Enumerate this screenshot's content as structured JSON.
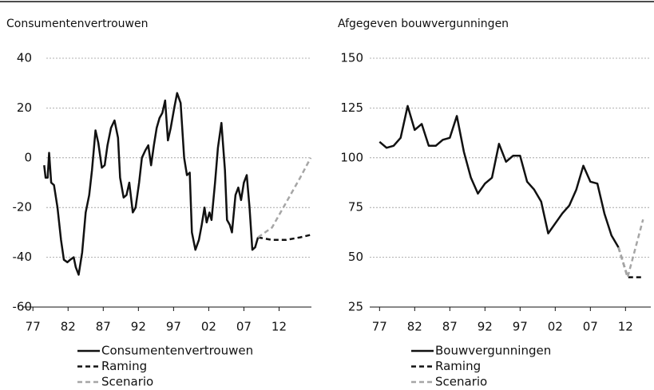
{
  "chart_data": [
    {
      "type": "line",
      "title": "Consumentenvertrouwen",
      "xlim": [
        1975.5,
        2016.6
      ],
      "xticks": [
        {
          "value": 1977,
          "label": "77"
        },
        {
          "value": 1982,
          "label": "82"
        },
        {
          "value": 1987,
          "label": "87"
        },
        {
          "value": 1992,
          "label": "92"
        },
        {
          "value": 1997,
          "label": "97"
        },
        {
          "value": 2002,
          "label": "02"
        },
        {
          "value": 2007,
          "label": "07"
        },
        {
          "value": 2012,
          "label": "12"
        }
      ],
      "ylim": [
        -60,
        40
      ],
      "yticks": [
        -60,
        -40,
        -20,
        0,
        20,
        40
      ],
      "grid": true,
      "series": [
        {
          "name": "Consumentenvertrouwen",
          "color": "#111111",
          "style": "solid",
          "x": [
            1978.6,
            1978.8,
            1979.1,
            1979.3,
            1979.6,
            1980.0,
            1980.5,
            1981.0,
            1981.4,
            1981.9,
            1982.3,
            1982.8,
            1983.1,
            1983.5,
            1984.0,
            1984.5,
            1985.0,
            1985.4,
            1985.9,
            1986.3,
            1986.8,
            1987.2,
            1987.6,
            1988.1,
            1988.6,
            1989.1,
            1989.4,
            1989.9,
            1990.3,
            1990.7,
            1991.2,
            1991.6,
            1992.1,
            1992.5,
            1993.0,
            1993.4,
            1993.8,
            1994.2,
            1994.6,
            1995.0,
            1995.4,
            1995.8,
            1996.2,
            1996.6,
            1997.1,
            1997.5,
            1998.0,
            1998.5,
            1998.9,
            1999.3,
            1999.6,
            2000.1,
            2000.6,
            2001.0,
            2001.4,
            2001.7,
            2002.1,
            2002.4,
            2002.9,
            2003.3,
            2003.8,
            2004.3,
            2004.6,
            2005.0,
            2005.3,
            2005.8,
            2006.2,
            2006.6,
            2007.0,
            2007.4,
            2007.8,
            2008.2,
            2008.6,
            2009.0
          ],
          "values": [
            -3,
            -8,
            -8,
            2,
            -10,
            -11,
            -20,
            -33,
            -41,
            -42,
            -41,
            -40,
            -44,
            -47,
            -38,
            -22,
            -15,
            -5,
            11,
            6,
            -4,
            -3,
            5,
            12,
            15,
            8,
            -8,
            -16,
            -15,
            -10,
            -22,
            -20,
            -10,
            0,
            3,
            5,
            -3,
            5,
            12,
            16,
            18,
            23,
            7,
            12,
            20,
            26,
            22,
            0,
            -7,
            -6,
            -30,
            -37,
            -33,
            -27,
            -20,
            -26,
            -22,
            -25,
            -10,
            4,
            14,
            -5,
            -25,
            -27,
            -30,
            -15,
            -12,
            -17,
            -10,
            -7,
            -20,
            -37,
            -36,
            -32
          ]
        },
        {
          "name": "Raming",
          "color": "#111111",
          "style": "dashed",
          "x": [
            2009.0,
            2011.0,
            2013.0,
            2015.0,
            2016.5
          ],
          "values": [
            -32,
            -33,
            -33,
            -32,
            -31
          ]
        },
        {
          "name": "Scenario",
          "color": "#a6a6a6",
          "style": "dashed",
          "x": [
            2009.0,
            2011.0,
            2013.0,
            2015.0,
            2016.5
          ],
          "values": [
            -32,
            -28,
            -18,
            -8,
            0
          ]
        }
      ]
    },
    {
      "type": "line",
      "title": "Afgegeven bouwvergunningen",
      "xlim": [
        1975.6,
        2015.6
      ],
      "xticks": [
        {
          "value": 1977,
          "label": "77"
        },
        {
          "value": 1982,
          "label": "82"
        },
        {
          "value": 1987,
          "label": "87"
        },
        {
          "value": 1992,
          "label": "92"
        },
        {
          "value": 1997,
          "label": "97"
        },
        {
          "value": 2002,
          "label": "02"
        },
        {
          "value": 2007,
          "label": "07"
        },
        {
          "value": 2012,
          "label": "12"
        }
      ],
      "ylim": [
        25,
        150
      ],
      "yticks": [
        25,
        50,
        75,
        100,
        125,
        150
      ],
      "grid": true,
      "series": [
        {
          "name": "Bouwvergunningen",
          "color": "#111111",
          "style": "solid",
          "x": [
            1977,
            1978,
            1979,
            1980,
            1981,
            1982,
            1983,
            1984,
            1985,
            1986,
            1987,
            1988,
            1989,
            1990,
            1991,
            1992,
            1993,
            1994,
            1995,
            1996,
            1997,
            1998,
            1999,
            2000,
            2001,
            2002,
            2003,
            2004,
            2005,
            2006,
            2007,
            2008,
            2009,
            2010,
            2011
          ],
          "values": [
            108,
            105,
            106,
            110,
            126,
            114,
            117,
            106,
            106,
            109,
            110,
            121,
            103,
            90,
            82,
            87,
            90,
            107,
            98,
            101,
            101,
            88,
            84,
            78,
            62,
            67,
            72,
            76,
            84,
            96,
            88,
            87,
            72,
            61,
            55
          ]
        },
        {
          "name": "Raming",
          "color": "#111111",
          "style": "dashed",
          "x": [
            2011,
            2012.3,
            2014.5
          ],
          "values": [
            55,
            40,
            40
          ]
        },
        {
          "name": "Scenario",
          "color": "#a6a6a6",
          "style": "dashed",
          "x": [
            2011,
            2012.3,
            2014.5
          ],
          "values": [
            55,
            40,
            69
          ]
        }
      ]
    }
  ]
}
